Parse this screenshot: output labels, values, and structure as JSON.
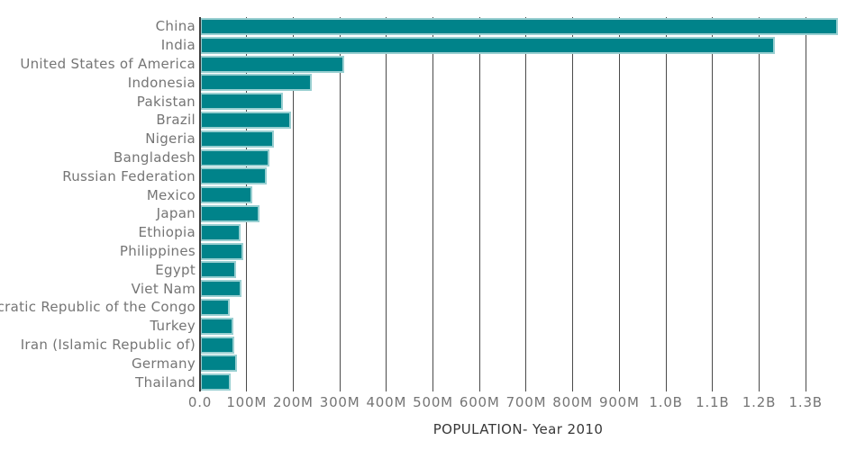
{
  "colors": {
    "background": "#ffffff",
    "bar_fill": "#00838A",
    "bar_stroke": "#99CFD1",
    "gridline": "#4a4a4a",
    "axis_line": "#3d3d3d",
    "tick_label": "#757575",
    "axis_title": "#383838"
  },
  "chart_data": {
    "type": "bar",
    "orientation": "horizontal",
    "title": "",
    "xlabel": "POPULATION- Year 2010",
    "ylabel": "",
    "unit": "millions of people",
    "grid": "vertical gridlines on, drawn behind bars",
    "legend": "none",
    "categories": [
      "China",
      "India",
      "United States of America",
      "Indonesia",
      "Pakistan",
      "Brazil",
      "Nigeria",
      "Bangladesh",
      "Russian Federation",
      "Mexico",
      "Japan",
      "Ethiopia",
      "Philippines",
      "Egypt",
      "Viet Nam",
      "Democratic Republic of the Congo",
      "Turkey",
      "Iran (Islamic Republic of)",
      "Germany",
      "Thailand"
    ],
    "values_millions": [
      1370,
      1234,
      309,
      240,
      178,
      195,
      158,
      148,
      143,
      113,
      127,
      87,
      92,
      78,
      88,
      64,
      72,
      73,
      80,
      66
    ],
    "xlim_millions": [
      0,
      1404
    ],
    "x_ticks": [
      {
        "label": "0.0",
        "value_millions": 0
      },
      {
        "label": "100M",
        "value_millions": 100
      },
      {
        "label": "200M",
        "value_millions": 200
      },
      {
        "label": "300M",
        "value_millions": 300
      },
      {
        "label": "400M",
        "value_millions": 400
      },
      {
        "label": "500M",
        "value_millions": 500
      },
      {
        "label": "600M",
        "value_millions": 600
      },
      {
        "label": "700M",
        "value_millions": 700
      },
      {
        "label": "800M",
        "value_millions": 800
      },
      {
        "label": "900M",
        "value_millions": 900
      },
      {
        "label": "1.0B",
        "value_millions": 1000
      },
      {
        "label": "1.1B",
        "value_millions": 1100
      },
      {
        "label": "1.2B",
        "value_millions": 1200
      },
      {
        "label": "1.3B",
        "value_millions": 1300
      }
    ]
  }
}
